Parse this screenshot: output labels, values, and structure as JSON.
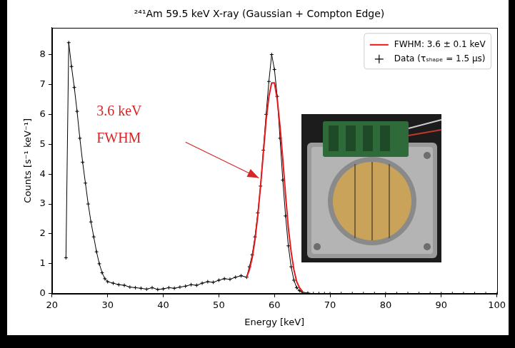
{
  "chart_data": {
    "type": "line",
    "title": "²⁴¹Am 59.5 keV X-ray (Gaussian + Compton Edge)",
    "x_label": "Energy [keV]",
    "y_label": "Counts [s⁻¹ keV⁻¹]",
    "series": [
      {
        "name": "FWHM: 3.6 ± 0.1 keV",
        "color": "#e41a1c",
        "marker": "none",
        "line_style": "solid",
        "x": [
          55,
          55.5,
          56,
          56.5,
          57,
          57.5,
          58,
          58.5,
          59,
          59.5,
          60,
          60.5,
          61,
          61.5,
          62,
          62.5,
          63,
          63.5,
          64,
          64.5,
          65
        ],
        "values": [
          0.55,
          0.8,
          1.2,
          1.8,
          2.6,
          3.6,
          4.7,
          5.8,
          6.6,
          7.05,
          7.05,
          6.5,
          5.6,
          4.5,
          3.3,
          2.2,
          1.4,
          0.8,
          0.4,
          0.2,
          0.08
        ]
      },
      {
        "name": "Data (τₛₕₐₚₑ = 1.5 μs)",
        "color": "#000000",
        "marker": "cross",
        "line_style": "solid",
        "x": [
          22.5,
          23,
          23.5,
          24,
          24.5,
          25,
          25.5,
          26,
          26.5,
          27,
          27.5,
          28,
          28.5,
          29,
          29.5,
          30,
          31,
          32,
          33,
          34,
          35,
          36,
          37,
          38,
          39,
          40,
          41,
          42,
          43,
          44,
          45,
          46,
          47,
          48,
          49,
          50,
          51,
          52,
          53,
          54,
          55,
          55.5,
          56,
          56.5,
          57,
          57.5,
          58,
          58.5,
          59,
          59.5,
          60,
          60.5,
          61,
          61.5,
          62,
          62.5,
          63,
          63.5,
          64,
          64.5,
          65,
          66,
          67,
          68,
          69,
          70,
          72,
          74,
          76,
          78,
          80,
          82,
          84,
          86,
          88,
          90,
          92,
          94,
          96,
          98,
          100
        ],
        "values": [
          1.2,
          8.4,
          7.6,
          6.9,
          6.1,
          5.2,
          4.4,
          3.7,
          3.0,
          2.4,
          1.9,
          1.4,
          1.0,
          0.7,
          0.5,
          0.4,
          0.35,
          0.3,
          0.28,
          0.22,
          0.2,
          0.18,
          0.15,
          0.2,
          0.14,
          0.16,
          0.2,
          0.18,
          0.22,
          0.25,
          0.3,
          0.28,
          0.35,
          0.4,
          0.38,
          0.45,
          0.5,
          0.48,
          0.55,
          0.6,
          0.55,
          0.9,
          1.3,
          1.9,
          2.7,
          3.6,
          4.8,
          6.0,
          7.1,
          8.0,
          7.5,
          6.6,
          5.2,
          3.8,
          2.6,
          1.6,
          0.9,
          0.45,
          0.2,
          0.1,
          0.05,
          0.02,
          0,
          0,
          0,
          0,
          0,
          0,
          0,
          0,
          0,
          0,
          0,
          0,
          0,
          0,
          0,
          0,
          0,
          0,
          0
        ]
      }
    ],
    "xlim": [
      20,
      100
    ],
    "xticks": [
      20,
      30,
      40,
      50,
      60,
      70,
      80,
      90,
      100
    ],
    "ylim": [
      0,
      8.9
    ],
    "yticks": [
      0,
      1,
      2,
      3,
      4,
      5,
      6,
      7,
      8
    ],
    "grid": false,
    "legend": "upper right",
    "annotations": [
      {
        "text": "3.6 keV FWHM",
        "color": "#d62728"
      }
    ]
  }
}
